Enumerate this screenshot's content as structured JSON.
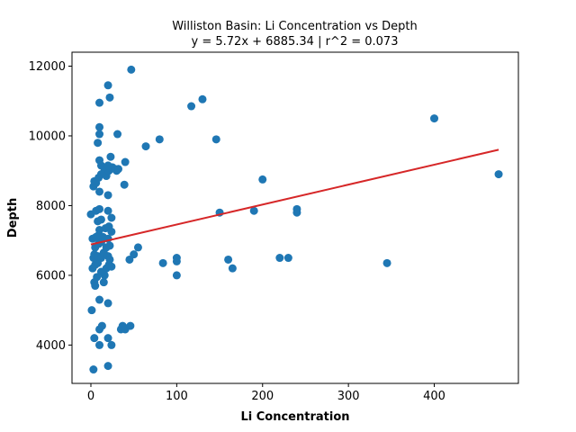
{
  "chart_data": {
    "type": "scatter",
    "title": "Williston Basin: Li Concentration vs Depth",
    "subtitle": "y = 5.72x + 6885.34 | r^2 = 0.073",
    "xlabel": "Li Concentration",
    "ylabel": "Depth",
    "xlim": [
      -22,
      498
    ],
    "ylim": [
      2900,
      12400
    ],
    "xticks": [
      0,
      100,
      200,
      300,
      400
    ],
    "yticks": [
      4000,
      6000,
      8000,
      10000,
      12000
    ],
    "grid": false,
    "point_color": "#1f77b4",
    "fit_color": "#d62728",
    "fit_line": {
      "slope": 5.72,
      "intercept": 6885.34,
      "x_range": [
        0,
        475
      ]
    },
    "points": [
      [
        3,
        3300
      ],
      [
        20,
        3400
      ],
      [
        1,
        5000
      ],
      [
        4,
        4200
      ],
      [
        20,
        4200
      ],
      [
        10,
        4000
      ],
      [
        24,
        4000
      ],
      [
        10,
        4450
      ],
      [
        13,
        4550
      ],
      [
        35,
        4450
      ],
      [
        37,
        4550
      ],
      [
        40,
        4450
      ],
      [
        46,
        4550
      ],
      [
        10,
        5300
      ],
      [
        20,
        5200
      ],
      [
        4,
        5800
      ],
      [
        5,
        5700
      ],
      [
        7,
        5950
      ],
      [
        15,
        5800
      ],
      [
        16,
        6000
      ],
      [
        12,
        6100
      ],
      [
        2,
        6200
      ],
      [
        5,
        6300
      ],
      [
        8,
        6350
      ],
      [
        18,
        6200
      ],
      [
        21,
        6300
      ],
      [
        24,
        6250
      ],
      [
        3,
        6500
      ],
      [
        4,
        6600
      ],
      [
        8,
        6550
      ],
      [
        12,
        6500
      ],
      [
        15,
        6650
      ],
      [
        20,
        6550
      ],
      [
        22,
        6450
      ],
      [
        5,
        6800
      ],
      [
        9,
        6900
      ],
      [
        12,
        6950
      ],
      [
        18,
        6800
      ],
      [
        22,
        6850
      ],
      [
        2,
        7050
      ],
      [
        6,
        7100
      ],
      [
        9,
        7150
      ],
      [
        14,
        7100
      ],
      [
        20,
        7050
      ],
      [
        10,
        7300
      ],
      [
        17,
        7350
      ],
      [
        21,
        7400
      ],
      [
        24,
        7250
      ],
      [
        8,
        7550
      ],
      [
        12,
        7600
      ],
      [
        0,
        7750
      ],
      [
        6,
        7850
      ],
      [
        10,
        7900
      ],
      [
        20,
        7850
      ],
      [
        24,
        7650
      ],
      [
        3,
        8550
      ],
      [
        6,
        8650
      ],
      [
        10,
        8400
      ],
      [
        20,
        8300
      ],
      [
        39,
        8600
      ],
      [
        4,
        8700
      ],
      [
        9,
        8800
      ],
      [
        12,
        8900
      ],
      [
        15,
        8950
      ],
      [
        18,
        8850
      ],
      [
        21,
        9000
      ],
      [
        25,
        9100
      ],
      [
        28,
        9050
      ],
      [
        30,
        9000
      ],
      [
        32,
        9050
      ],
      [
        12,
        9150
      ],
      [
        15,
        9100
      ],
      [
        20,
        9150
      ],
      [
        10,
        9300
      ],
      [
        23,
        9400
      ],
      [
        40,
        9250
      ],
      [
        8,
        9800
      ],
      [
        10,
        10050
      ],
      [
        10,
        10250
      ],
      [
        31,
        10050
      ],
      [
        10,
        10950
      ],
      [
        20,
        11450
      ],
      [
        22,
        11100
      ],
      [
        47,
        11900
      ],
      [
        50,
        6600
      ],
      [
        45,
        6450
      ],
      [
        55,
        6800
      ],
      [
        64,
        9700
      ],
      [
        80,
        9900
      ],
      [
        84,
        6350
      ],
      [
        100,
        6000
      ],
      [
        100,
        6400
      ],
      [
        100,
        6500
      ],
      [
        117,
        10850
      ],
      [
        130,
        11050
      ],
      [
        146,
        9900
      ],
      [
        150,
        7800
      ],
      [
        160,
        6450
      ],
      [
        165,
        6200
      ],
      [
        190,
        7850
      ],
      [
        200,
        8750
      ],
      [
        220,
        6500
      ],
      [
        230,
        6500
      ],
      [
        240,
        7800
      ],
      [
        240,
        7900
      ],
      [
        345,
        6350
      ],
      [
        400,
        10500
      ],
      [
        475,
        8900
      ]
    ]
  }
}
